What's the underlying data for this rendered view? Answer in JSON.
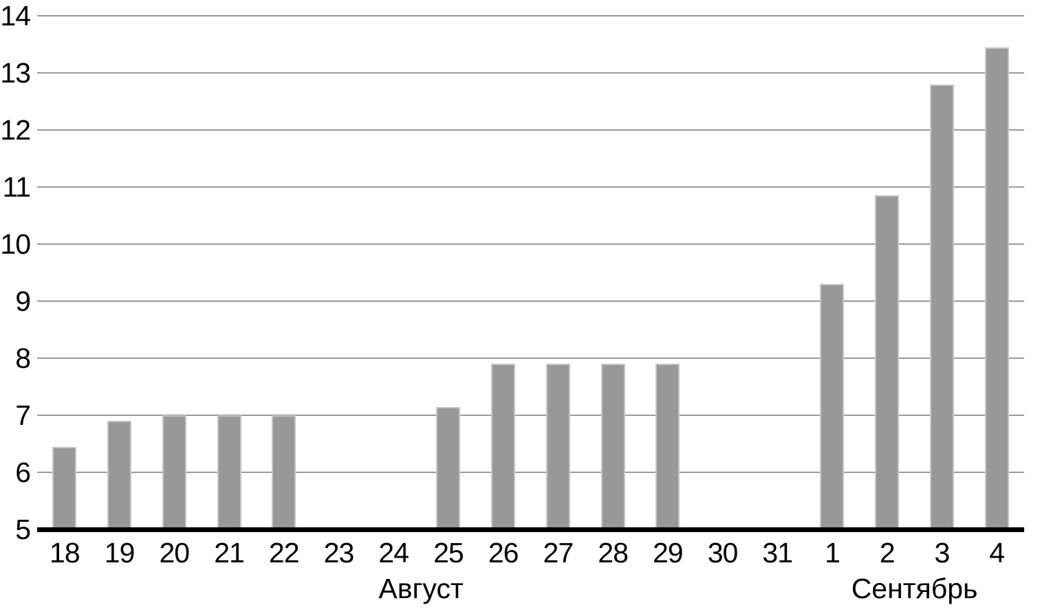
{
  "chart_data": {
    "type": "bar",
    "title": "",
    "xlabel": "",
    "ylabel": "",
    "categories": [
      "18",
      "19",
      "20",
      "21",
      "22",
      "23",
      "24",
      "25",
      "26",
      "27",
      "28",
      "29",
      "30",
      "31",
      "1",
      "2",
      "3",
      "4"
    ],
    "values": [
      6.45,
      6.9,
      7,
      7,
      7,
      null,
      null,
      7.15,
      7.9,
      7.9,
      7.9,
      7.9,
      null,
      null,
      9.3,
      10.85,
      12.8,
      13.45
    ],
    "month_groups": [
      {
        "label": "Август",
        "from_index": 0,
        "to_index": 13
      },
      {
        "label": "Сентябрь",
        "from_index": 14,
        "to_index": 17
      }
    ],
    "ylim": [
      5,
      14
    ],
    "yticks": [
      5,
      6,
      7,
      8,
      9,
      10,
      11,
      12,
      13,
      14
    ],
    "grid": "horizontal-only",
    "legend": "none",
    "bar_color": "#989898",
    "bar_border_color": "#c6c6c6",
    "gridline_color": "#9a9a9a",
    "axis_color": "#000000",
    "text_color": "#000000"
  }
}
